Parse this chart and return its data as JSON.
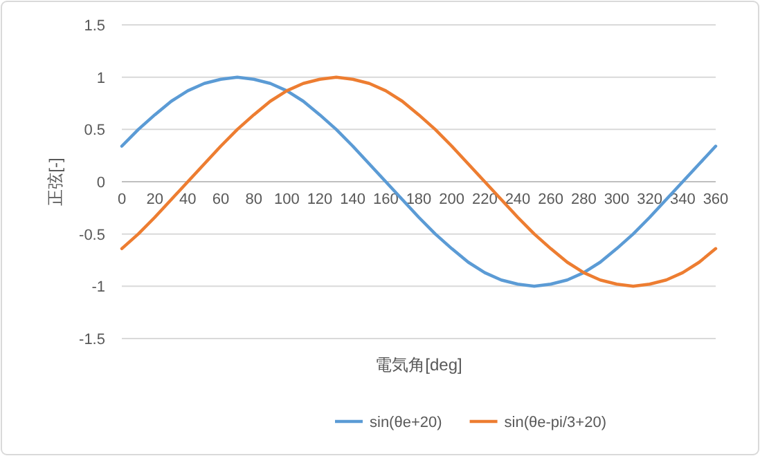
{
  "chart_data": {
    "type": "line",
    "xlabel": "電気角[deg]",
    "ylabel": "正弦[-]",
    "x": [
      0,
      10,
      20,
      30,
      40,
      50,
      60,
      70,
      80,
      90,
      100,
      110,
      120,
      130,
      140,
      150,
      160,
      170,
      180,
      190,
      200,
      210,
      220,
      230,
      240,
      250,
      260,
      270,
      280,
      290,
      300,
      310,
      320,
      330,
      340,
      350,
      360
    ],
    "series": [
      {
        "name": "sin(θe+20)",
        "color": "#5b9bd5",
        "values": [
          0.34,
          0.5,
          0.64,
          0.77,
          0.87,
          0.94,
          0.98,
          1.0,
          0.98,
          0.94,
          0.87,
          0.77,
          0.64,
          0.5,
          0.34,
          0.17,
          0,
          -0.17,
          -0.34,
          -0.5,
          -0.64,
          -0.77,
          -0.87,
          -0.94,
          -0.98,
          -1.0,
          -0.98,
          -0.94,
          -0.87,
          -0.77,
          -0.64,
          -0.5,
          -0.34,
          -0.17,
          0,
          0.17,
          0.34
        ]
      },
      {
        "name": "sin(θe-pi/3+20)",
        "color": "#ed7d31",
        "values": [
          -0.64,
          -0.5,
          -0.34,
          -0.17,
          0,
          0.17,
          0.34,
          0.5,
          0.64,
          0.77,
          0.87,
          0.94,
          0.98,
          1.0,
          0.98,
          0.94,
          0.87,
          0.77,
          0.64,
          0.5,
          0.34,
          0.17,
          0,
          -0.17,
          -0.34,
          -0.5,
          -0.64,
          -0.77,
          -0.87,
          -0.94,
          -0.98,
          -1.0,
          -0.98,
          -0.94,
          -0.87,
          -0.77,
          -0.64
        ]
      }
    ],
    "xlim": [
      0,
      360
    ],
    "ylim": [
      -1.5,
      1.5
    ],
    "xticks": [
      0,
      20,
      40,
      60,
      80,
      100,
      120,
      140,
      160,
      180,
      200,
      220,
      240,
      260,
      280,
      300,
      320,
      340,
      360
    ],
    "yticks": [
      -1.5,
      -1,
      -0.5,
      0,
      0.5,
      1,
      1.5
    ],
    "grid": "y",
    "legend": "bottom"
  }
}
